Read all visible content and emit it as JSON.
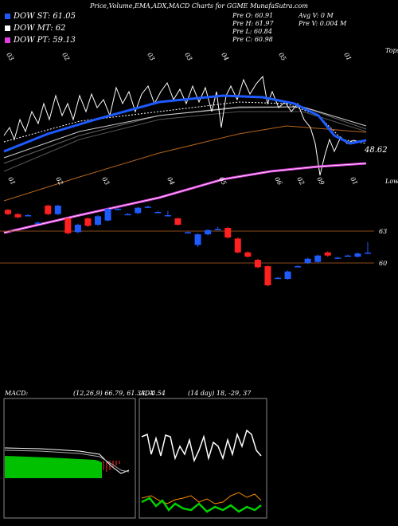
{
  "chart_data": {
    "type": "candlestick",
    "title": "Price,Volume,EMA,ADX,MACD Charts for GGME MunafaSutra.com",
    "legend": [
      "DOW ST: 61.05",
      "DOW MT: 62",
      "DOW PT: 59.13"
    ],
    "legend_colors": [
      "#1e5bff",
      "#ffffff",
      "#e040e0"
    ],
    "stats": [
      "Pre  O: 60.91",
      "Pre  H: 61.97",
      "Pre  L: 60.84",
      "Pre  C: 60.98",
      "Avg  V: 0  M",
      "Pre  V: 0.004  M"
    ],
    "upper_labels": {
      "last": "48.62",
      "tops": "Tops",
      "lows": "Lows",
      "top_dates": [
        "03",
        "02",
        "03",
        "03",
        "04",
        "05",
        "01"
      ],
      "bottom_dates": [
        "01",
        "02",
        "03",
        "04",
        "05",
        "06",
        "02",
        "09",
        "01"
      ]
    },
    "open": [
      65.0,
      64.6,
      64.5,
      63.8,
      65.4,
      64.6,
      64.2,
      62.9,
      64.2,
      63.6,
      64.0,
      65.1,
      64.6,
      64.7,
      65.3,
      64.8,
      64.5,
      64.2,
      62.9,
      61.7,
      62.7,
      63.2,
      63.3,
      62.3,
      61.0,
      60.3,
      59.7,
      58.6,
      58.5,
      59.7,
      60.0,
      60.1,
      61.0,
      60.5,
      60.7,
      60.6,
      60.91
    ],
    "high": [
      65.1,
      64.7,
      64.6,
      63.9,
      65.5,
      65.5,
      64.3,
      63.7,
      64.3,
      64.5,
      65.2,
      65.2,
      64.7,
      65.3,
      65.4,
      64.9,
      64.9,
      64.3,
      63.0,
      62.8,
      63.2,
      63.4,
      63.4,
      62.4,
      61.1,
      60.4,
      59.8,
      58.7,
      59.3,
      59.8,
      60.5,
      60.8,
      61.1,
      60.6,
      60.8,
      61.0,
      61.97
    ],
    "low": [
      64.5,
      64.2,
      64.4,
      63.7,
      64.5,
      64.5,
      62.7,
      62.8,
      63.4,
      63.5,
      63.9,
      65.0,
      64.5,
      64.6,
      65.2,
      64.7,
      64.4,
      63.5,
      62.8,
      61.5,
      62.6,
      63.1,
      62.3,
      60.9,
      60.5,
      59.5,
      57.8,
      58.5,
      58.4,
      59.6,
      59.9,
      60.0,
      60.6,
      60.4,
      60.6,
      60.5,
      60.84
    ],
    "close": [
      64.6,
      64.3,
      64.5,
      63.8,
      64.6,
      65.4,
      62.8,
      63.6,
      63.5,
      64.4,
      65.1,
      65.1,
      64.6,
      65.2,
      65.3,
      64.8,
      64.5,
      63.6,
      62.9,
      62.7,
      63.1,
      63.2,
      62.4,
      61.0,
      60.6,
      59.6,
      57.9,
      58.6,
      59.2,
      59.7,
      60.4,
      60.7,
      60.7,
      60.5,
      60.7,
      60.9,
      60.98
    ],
    "up_color": "#1e5bff",
    "down_color": "#ff2020",
    "ylim": [
      57.75,
      65.25
    ],
    "yticks": [
      60,
      63
    ],
    "macd_label": "MACD:",
    "macd_params": "(12,26,9) 66.79, 61.33, -0.54",
    "adx_label": "ADX",
    "adx_params": "(14 day) 18, -29, 37"
  }
}
